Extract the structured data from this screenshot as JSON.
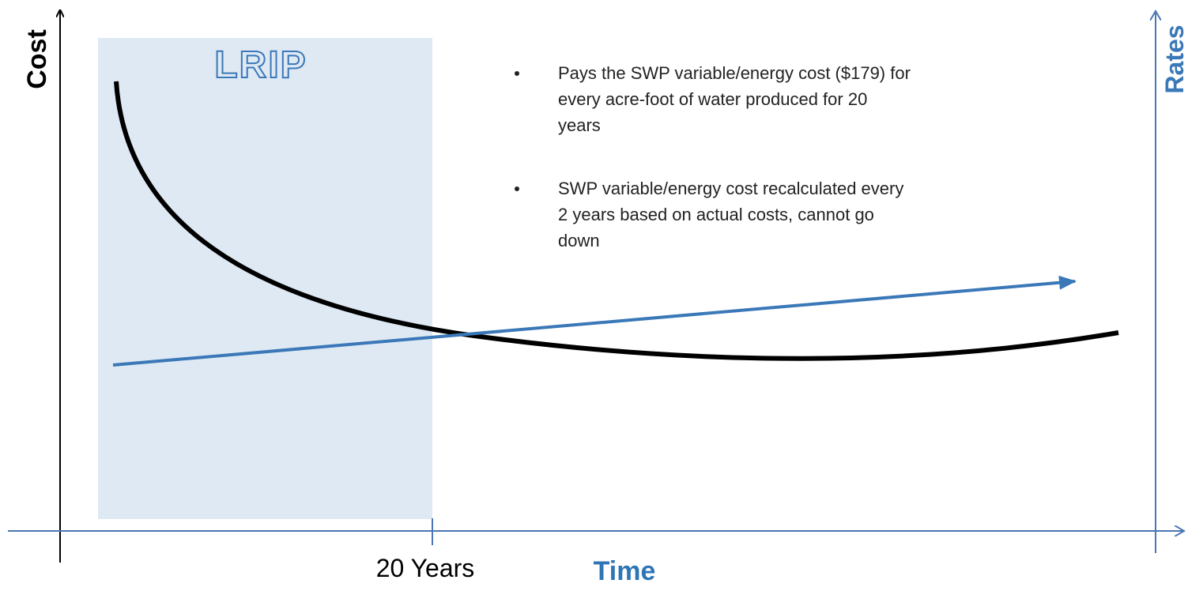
{
  "labels": {
    "y_axis": "Cost",
    "y2_axis": "Rates",
    "x_axis": "Time",
    "x_tick": "20 Years",
    "region": "LRIP"
  },
  "bullets": [
    [
      "Pays the SWP variable/energy cost ($179) for",
      "every acre-foot of water produced for 20",
      "years"
    ],
    [
      "SWP variable/energy cost recalculated every",
      "2 years based on actual costs, cannot go",
      "down"
    ]
  ]
}
